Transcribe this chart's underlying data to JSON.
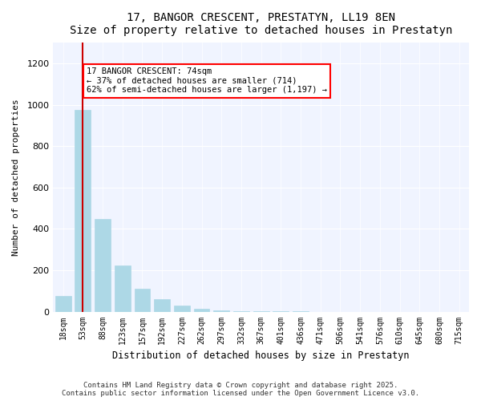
{
  "title": "17, BANGOR CRESCENT, PRESTATYN, LL19 8EN",
  "subtitle": "Size of property relative to detached houses in Prestatyn",
  "xlabel": "Distribution of detached houses by size in Prestatyn",
  "ylabel": "Number of detached properties",
  "bar_color": "#add8e6",
  "bar_edge_color": "#add8e6",
  "marker_color": "#cc0000",
  "background_color": "#f0f4ff",
  "categories": [
    "18sqm",
    "53sqm",
    "88sqm",
    "123sqm",
    "157sqm",
    "192sqm",
    "227sqm",
    "262sqm",
    "297sqm",
    "332sqm",
    "367sqm",
    "401sqm",
    "436sqm",
    "471sqm",
    "506sqm",
    "541sqm",
    "576sqm",
    "610sqm",
    "645sqm",
    "680sqm",
    "715sqm"
  ],
  "values": [
    75,
    975,
    450,
    225,
    110,
    60,
    30,
    12,
    5,
    3,
    2,
    1,
    1,
    0,
    0,
    0,
    0,
    0,
    0,
    0,
    0
  ],
  "property_size": 74,
  "property_bin_index": 1,
  "annotation_title": "17 BANGOR CRESCENT: 74sqm",
  "annotation_line1": "← 37% of detached houses are smaller (714)",
  "annotation_line2": "62% of semi-detached houses are larger (1,197) →",
  "copyright_text": "Contains HM Land Registry data © Crown copyright and database right 2025.\nContains public sector information licensed under the Open Government Licence v3.0.",
  "ylim": [
    0,
    1300
  ],
  "yticks": [
    0,
    200,
    400,
    600,
    800,
    1000,
    1200
  ]
}
